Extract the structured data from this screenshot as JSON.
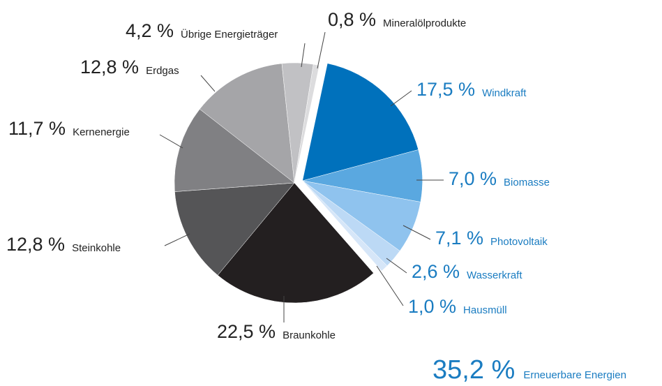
{
  "chart_data": {
    "type": "pie",
    "categories": [
      "Windkraft",
      "Biomasse",
      "Photovoltaik",
      "Wasserkraft",
      "Hausmüll",
      "Braunkohle",
      "Steinkohle",
      "Kernenergie",
      "Erdgas",
      "Übrige Energieträger",
      "Mineralölprodukte"
    ],
    "values": [
      17.5,
      7.0,
      7.1,
      2.6,
      1.0,
      22.5,
      12.8,
      11.7,
      12.8,
      4.2,
      0.8
    ],
    "value_labels": [
      "17,5 %",
      "7,0 %",
      "7,1 %",
      "2,6 %",
      "1,0 %",
      "22,5 %",
      "12,8 %",
      "11,7 %",
      "12,8 %",
      "4,2 %",
      "0,8 %"
    ],
    "colors": [
      "#0071bc",
      "#5aa8e0",
      "#8fc3ee",
      "#bcd9f5",
      "#d6e6f8",
      "#231f20",
      "#555557",
      "#808083",
      "#a5a5a8",
      "#c1c1c4",
      "#dcdcde"
    ],
    "label_colors": [
      "#1a7cc1",
      "#1a7cc1",
      "#1a7cc1",
      "#1a7cc1",
      "#1a7cc1",
      "#222222",
      "#222222",
      "#222222",
      "#222222",
      "#222222",
      "#222222"
    ],
    "explode": [
      true,
      true,
      true,
      true,
      true,
      false,
      false,
      false,
      false,
      false,
      false
    ],
    "summary_value": "35,2 %",
    "summary_label": "Erneuerbare Energien"
  }
}
